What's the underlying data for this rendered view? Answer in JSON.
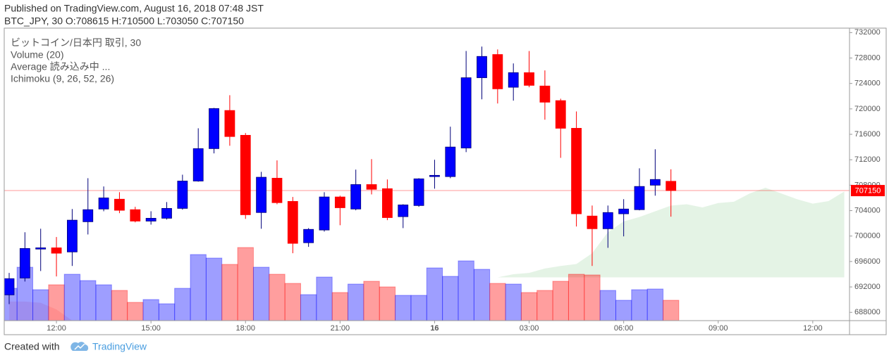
{
  "chart_data": {
    "type": "candlestick",
    "title": "Published on TradingView.com, August 16, 2018 07:48 JST",
    "subtitle": "BTC_JPY, 30 O:708615 H:710500 L:703050 C:707150",
    "legend": [
      "ビットコイン/日本円 取引, 30",
      "Volume (20)",
      "Average 読み込み中 ...",
      "Ichimoku (9, 26, 52, 26)"
    ],
    "categories": [
      null,
      null,
      null,
      "12:00",
      null,
      null,
      null,
      null,
      null,
      "15:00",
      null,
      null,
      null,
      null,
      null,
      "18:00",
      null,
      null,
      null,
      null,
      null,
      "21:00",
      null,
      null,
      null,
      null,
      null,
      "16",
      null,
      null,
      null,
      null,
      null,
      "03:00",
      null,
      null,
      null,
      null,
      null,
      "06:00",
      null,
      null,
      null,
      null,
      null,
      "09:00",
      null,
      null,
      null,
      null,
      null,
      "12:00",
      null,
      null
    ],
    "open": [
      690750,
      693400,
      697950,
      698150,
      697500,
      702250,
      704250,
      705800,
      704150,
      702350,
      702800,
      704350,
      708650,
      713750,
      719750,
      715850,
      703700,
      709100,
      705450,
      698950,
      700950,
      706150,
      704250,
      708100,
      707450,
      703050,
      704800,
      709350,
      709350,
      713850,
      724900,
      728550,
      723400,
      725700,
      723600,
      721300,
      716950,
      703150,
      701150,
      703500,
      704150,
      708000,
      708615,
      null,
      null,
      null,
      null,
      null,
      null,
      null,
      null,
      null,
      null,
      null
    ],
    "high": [
      694200,
      700600,
      701150,
      699850,
      704250,
      709100,
      707800,
      706900,
      704600,
      703900,
      705350,
      709650,
      716950,
      720150,
      722150,
      716200,
      710100,
      711900,
      706150,
      701250,
      706900,
      706350,
      710450,
      712100,
      708900,
      705000,
      709100,
      712000,
      717200,
      729100,
      729800,
      729350,
      727150,
      729100,
      726050,
      721600,
      719600,
      704800,
      704800,
      705800,
      710650,
      713650,
      710500,
      null,
      null,
      null,
      null,
      null,
      null,
      null,
      null,
      null,
      null,
      null
    ],
    "low": [
      689300,
      692850,
      694500,
      693650,
      695300,
      700250,
      703900,
      703600,
      702150,
      701800,
      702600,
      704150,
      708550,
      713000,
      714200,
      702700,
      701150,
      705000,
      697300,
      698300,
      700700,
      701700,
      704050,
      706550,
      702500,
      701250,
      704600,
      707450,
      709100,
      713200,
      721500,
      720850,
      721300,
      723400,
      718300,
      712300,
      701500,
      695300,
      698150,
      699950,
      704050,
      706350,
      703050,
      null,
      null,
      null,
      null,
      null,
      null,
      null,
      null,
      null,
      null,
      null
    ],
    "close": [
      693300,
      698050,
      698150,
      697300,
      702500,
      704150,
      706000,
      704050,
      702350,
      702800,
      704350,
      708650,
      713750,
      720050,
      715650,
      703350,
      709250,
      705250,
      698850,
      701050,
      706150,
      704450,
      708100,
      707350,
      702900,
      704900,
      709000,
      709550,
      714000,
      724900,
      728250,
      723150,
      725700,
      723700,
      721050,
      716950,
      703500,
      701150,
      703700,
      704250,
      707800,
      708900,
      707150,
      null,
      null,
      null,
      null,
      null,
      null,
      null,
      null,
      null,
      null,
      null
    ],
    "volume": [
      46,
      76,
      44,
      51,
      66,
      57,
      51,
      43,
      26,
      30,
      24,
      46,
      94,
      89,
      80,
      104,
      76,
      66,
      53,
      37,
      62,
      40,
      52,
      56,
      48,
      36,
      36,
      75,
      63,
      85,
      73,
      53,
      52,
      40,
      43,
      56,
      66,
      65,
      43,
      29,
      44,
      45,
      29,
      null,
      null,
      null,
      null,
      null,
      null,
      null,
      null,
      null,
      null,
      null
    ],
    "up_color": "#0000ff",
    "down_color": "#ff0000",
    "ichimoku": {
      "span_a": [
        686500,
        686500,
        686500,
        686500,
        686700,
        null,
        null,
        null,
        null,
        null,
        null,
        null,
        null,
        null,
        null,
        null,
        null,
        null,
        null,
        null,
        null,
        null,
        null,
        null,
        null,
        null,
        null,
        null,
        null,
        null,
        null,
        693500,
        694000,
        694200,
        694900,
        695300,
        695600,
        697300,
        700600,
        702300,
        703000,
        703900,
        704800,
        705000,
        704500,
        705200,
        705400,
        706700,
        707600,
        706700,
        705800,
        705100,
        705500,
        707000
      ],
      "span_b": [
        689700,
        689700,
        689500,
        688450,
        686700,
        null,
        null,
        null,
        null,
        null,
        null,
        null,
        null,
        null,
        null,
        null,
        null,
        null,
        null,
        null,
        null,
        null,
        null,
        null,
        null,
        null,
        null,
        null,
        null,
        null,
        null,
        693500,
        693500,
        693500,
        693500,
        693500,
        693500,
        693500,
        693500,
        693500,
        693500,
        693500,
        693500,
        693500,
        693500,
        693500,
        693500,
        693500,
        693500,
        693500,
        693500,
        693500,
        693500,
        693500
      ],
      "up_color": "#4caf50",
      "down_color": "#ff5252"
    },
    "ylim": [
      686700,
      732700
    ],
    "yticks": [
      688000,
      692000,
      696000,
      700000,
      704000,
      708000,
      712000,
      716000,
      720000,
      724000,
      728000,
      732000
    ],
    "grid": false
  },
  "footer": {
    "text": "Created with",
    "brand": "TradingView"
  }
}
